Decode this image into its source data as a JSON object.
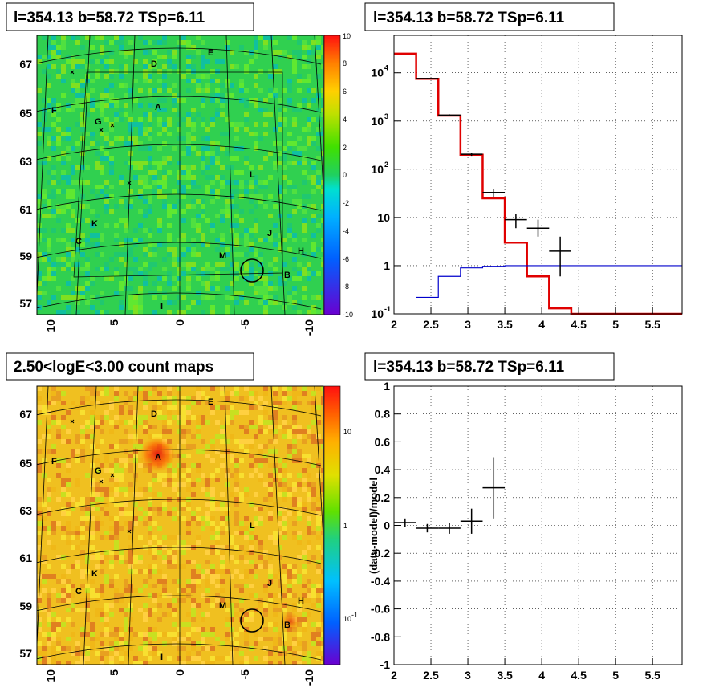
{
  "titles": {
    "tl": "l=354.13 b=58.72 TSp=6.11",
    "tr": "l=354.13 b=58.72 TSp=6.11",
    "bl": "2.50<logE<3.00 count maps",
    "br": "l=354.13 b=58.72 TSp=6.11"
  },
  "maps": {
    "y_ticks": [
      "67",
      "65",
      "63",
      "61",
      "59",
      "57"
    ],
    "x_ticks": [
      "10",
      "5",
      "0",
      "-5",
      "-10"
    ],
    "source_labels": [
      "D",
      "E",
      "A",
      "F",
      "G",
      "L",
      "K",
      "J",
      "C",
      "H",
      "M",
      "B",
      "I"
    ],
    "colorbar_top_ticks": [
      "10",
      "8",
      "6",
      "4",
      "2",
      "0",
      "-2",
      "-4",
      "-6",
      "-8",
      "-10"
    ],
    "colorbar_bottom_ticks": [
      "10",
      "1",
      "10",
      "-1"
    ]
  },
  "colors": {
    "spectrum_model": "#e00000",
    "background_model": "#0000cc",
    "data": "#000000",
    "grid": "#000000"
  },
  "chart_data": [
    {
      "panel": "residual map",
      "type": "heatmap",
      "title": "l=354.13 b=58.72 TSp=6.11",
      "colorbar_range": [
        -10,
        10
      ]
    },
    {
      "panel": "spectrum",
      "type": "line",
      "title": "l=354.13 b=58.72 TSp=6.11",
      "xlim": [
        2,
        5.9
      ],
      "ylim": [
        0.1,
        60000
      ],
      "y_scale": "log",
      "x_ticks": [
        "2",
        "2.5",
        "3",
        "3.5",
        "4",
        "4.5",
        "5",
        "5.5"
      ],
      "y_ticks": [
        {
          "base": "10",
          "exp": "4"
        },
        {
          "base": "10",
          "exp": "3"
        },
        {
          "base": "10",
          "exp": "2"
        },
        {
          "base": "10",
          "exp": ""
        },
        {
          "base": "1",
          "exp": ""
        },
        {
          "base": "10",
          "exp": "-1"
        }
      ],
      "grid": true,
      "series": [
        {
          "steps": [
            [
              2.0,
              2.3,
              25000
            ],
            [
              2.3,
              2.6,
              7500
            ],
            [
              2.6,
              2.9,
              1300
            ],
            [
              2.9,
              3.2,
              200
            ],
            [
              3.2,
              3.5,
              25
            ],
            [
              3.5,
              3.8,
              3
            ],
            [
              3.8,
              4.1,
              0.6
            ],
            [
              4.1,
              4.4,
              0.13
            ],
            [
              4.4,
              5.9,
              0.1
            ]
          ]
        },
        {
          "steps": [
            [
              2.3,
              2.6,
              0.22
            ],
            [
              2.6,
              2.9,
              0.6
            ],
            [
              2.9,
              3.2,
              0.9
            ],
            [
              3.2,
              3.5,
              0.97
            ],
            [
              3.5,
              3.8,
              1.0
            ],
            [
              3.8,
              5.9,
              1.0
            ]
          ]
        }
      ],
      "points": [
        {
          "x": 2.45,
          "y": 7600,
          "xerr": 0.15,
          "ylo": 7400,
          "yhi": 7800
        },
        {
          "x": 2.75,
          "y": 1330,
          "xerr": 0.15,
          "ylo": 1280,
          "yhi": 1380
        },
        {
          "x": 3.05,
          "y": 205,
          "xerr": 0.15,
          "ylo": 190,
          "yhi": 220
        },
        {
          "x": 3.35,
          "y": 33,
          "xerr": 0.15,
          "ylo": 27,
          "yhi": 39
        },
        {
          "x": 3.65,
          "y": 9,
          "xerr": 0.15,
          "ylo": 6,
          "yhi": 12
        },
        {
          "x": 3.95,
          "y": 6,
          "xerr": 0.15,
          "ylo": 4,
          "yhi": 9
        },
        {
          "x": 4.25,
          "y": 2,
          "xerr": 0.15,
          "ylo": 0.6,
          "yhi": 4
        }
      ]
    },
    {
      "panel": "count map",
      "type": "heatmap",
      "title": "2.50<logE<3.00 count maps",
      "colorbar_scale": "log"
    },
    {
      "panel": "residuals",
      "type": "scatter",
      "title": "l=354.13 b=58.72 TSp=6.11",
      "ylabel": "(data-model)/model",
      "xlim": [
        2,
        5.9
      ],
      "ylim": [
        -1,
        1
      ],
      "x_ticks": [
        "2",
        "2.5",
        "3",
        "3.5",
        "4",
        "4.5",
        "5",
        "5.5"
      ],
      "y_ticks": [
        "1",
        "0.8",
        "0.6",
        "0.4",
        "0.2",
        "0",
        "-0.2",
        "-0.4",
        "-0.6",
        "-0.8",
        "-1"
      ],
      "grid": true,
      "points": [
        {
          "x": 2.15,
          "y": 0.02,
          "xerr": 0.15,
          "ylo": -0.01,
          "yhi": 0.05
        },
        {
          "x": 2.45,
          "y": -0.02,
          "xerr": 0.15,
          "ylo": -0.05,
          "yhi": 0.01
        },
        {
          "x": 2.75,
          "y": -0.02,
          "xerr": 0.15,
          "ylo": -0.06,
          "yhi": 0.02
        },
        {
          "x": 3.05,
          "y": 0.03,
          "xerr": 0.15,
          "ylo": -0.06,
          "yhi": 0.12
        },
        {
          "x": 3.35,
          "y": 0.27,
          "xerr": 0.15,
          "ylo": 0.05,
          "yhi": 0.49
        }
      ]
    }
  ]
}
